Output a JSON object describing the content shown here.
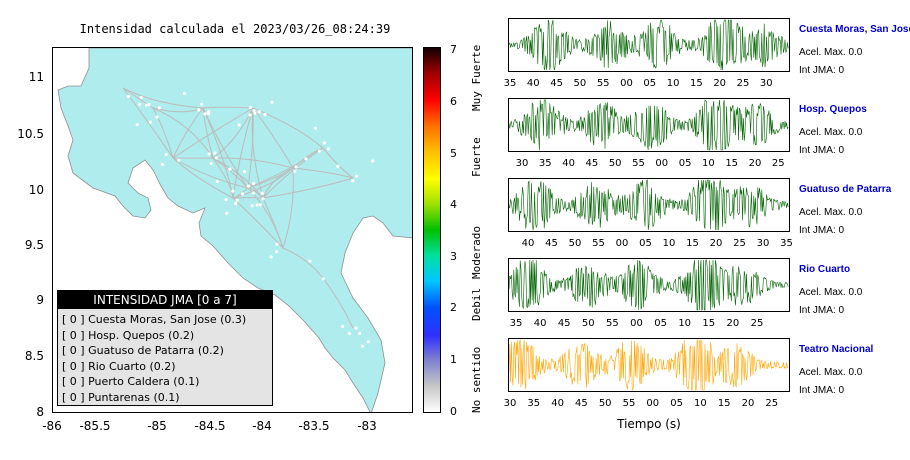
{
  "map": {
    "title": "Intensidad calculada el 2023/03/26_08:24:39",
    "y_ticks": [
      "11",
      "10.5",
      "10",
      "9.5",
      "9",
      "8.5",
      "8"
    ],
    "x_ticks": [
      "-86",
      "-85.5",
      "-85",
      "-84.5",
      "-84",
      "-83.5",
      "-83"
    ],
    "land_color": "#aeeced"
  },
  "legend": {
    "title": "INTENSIDAD JMA [0 a 7]",
    "rows": [
      "[ 0 ]  Cuesta Moras, San Jose (0.3)",
      "[ 0 ]  Hosp. Quepos (0.2)",
      "[ 0 ]  Guatuso de Patarra (0.2)",
      "[ 0 ]  Rio Cuarto (0.2)",
      "[ 0 ]  Puerto Caldera (0.1)",
      "[ 0 ]  Puntarenas (0.1)"
    ]
  },
  "colorbar": {
    "ticks": [
      "0",
      "1",
      "2",
      "3",
      "4",
      "5",
      "6",
      "7"
    ],
    "words": [
      "No sentido",
      "Debil",
      "Moderado",
      "Fuerte",
      "Muy Fuerte"
    ]
  },
  "stations": [
    {
      "name": "Cuesta Moras, San Jose",
      "acel": "Acel. Max. 0.0",
      "int": "Int JMA: 0",
      "color": "#006400",
      "ticks": [
        "35",
        "40",
        "45",
        "50",
        "55",
        "00",
        "05",
        "10",
        "15",
        "20",
        "25",
        "30"
      ],
      "first_tick_x": 510,
      "spacing": 23.3
    },
    {
      "name": "Hosp. Quepos",
      "acel": "Acel. Max. 0.0",
      "int": "Int JMA: 0",
      "color": "#006400",
      "ticks": [
        "30",
        "35",
        "40",
        "45",
        "50",
        "55",
        "00",
        "05",
        "10",
        "15",
        "20",
        "25"
      ],
      "first_tick_x": 522,
      "spacing": 23.3
    },
    {
      "name": "Guatuso de Patarra",
      "acel": "Acel. Max. 0.0",
      "int": "Int JMA: 0",
      "color": "#006400",
      "ticks": [
        "40",
        "45",
        "50",
        "55",
        "00",
        "05",
        "10",
        "15",
        "20",
        "25",
        "30",
        "35"
      ],
      "first_tick_x": 528,
      "spacing": 23.5
    },
    {
      "name": "Rio Cuarto",
      "acel": "Acel. Max. 0.0",
      "int": "Int JMA: 0",
      "color": "#006400",
      "ticks": [
        "35",
        "40",
        "45",
        "50",
        "55",
        "00",
        "05",
        "10",
        "15",
        "20",
        "25"
      ],
      "first_tick_x": 516,
      "spacing": 24.1
    },
    {
      "name": "Teatro Nacional",
      "acel": "Acel. Max. 0.0",
      "int": "Int JMA: 0",
      "color": "#ffa500",
      "ticks": [
        "30",
        "35",
        "40",
        "45",
        "50",
        "55",
        "00",
        "05",
        "10",
        "15",
        "20",
        "25"
      ],
      "first_tick_x": 510,
      "spacing": 23.8
    }
  ],
  "time_label": "Tiempo (s)"
}
